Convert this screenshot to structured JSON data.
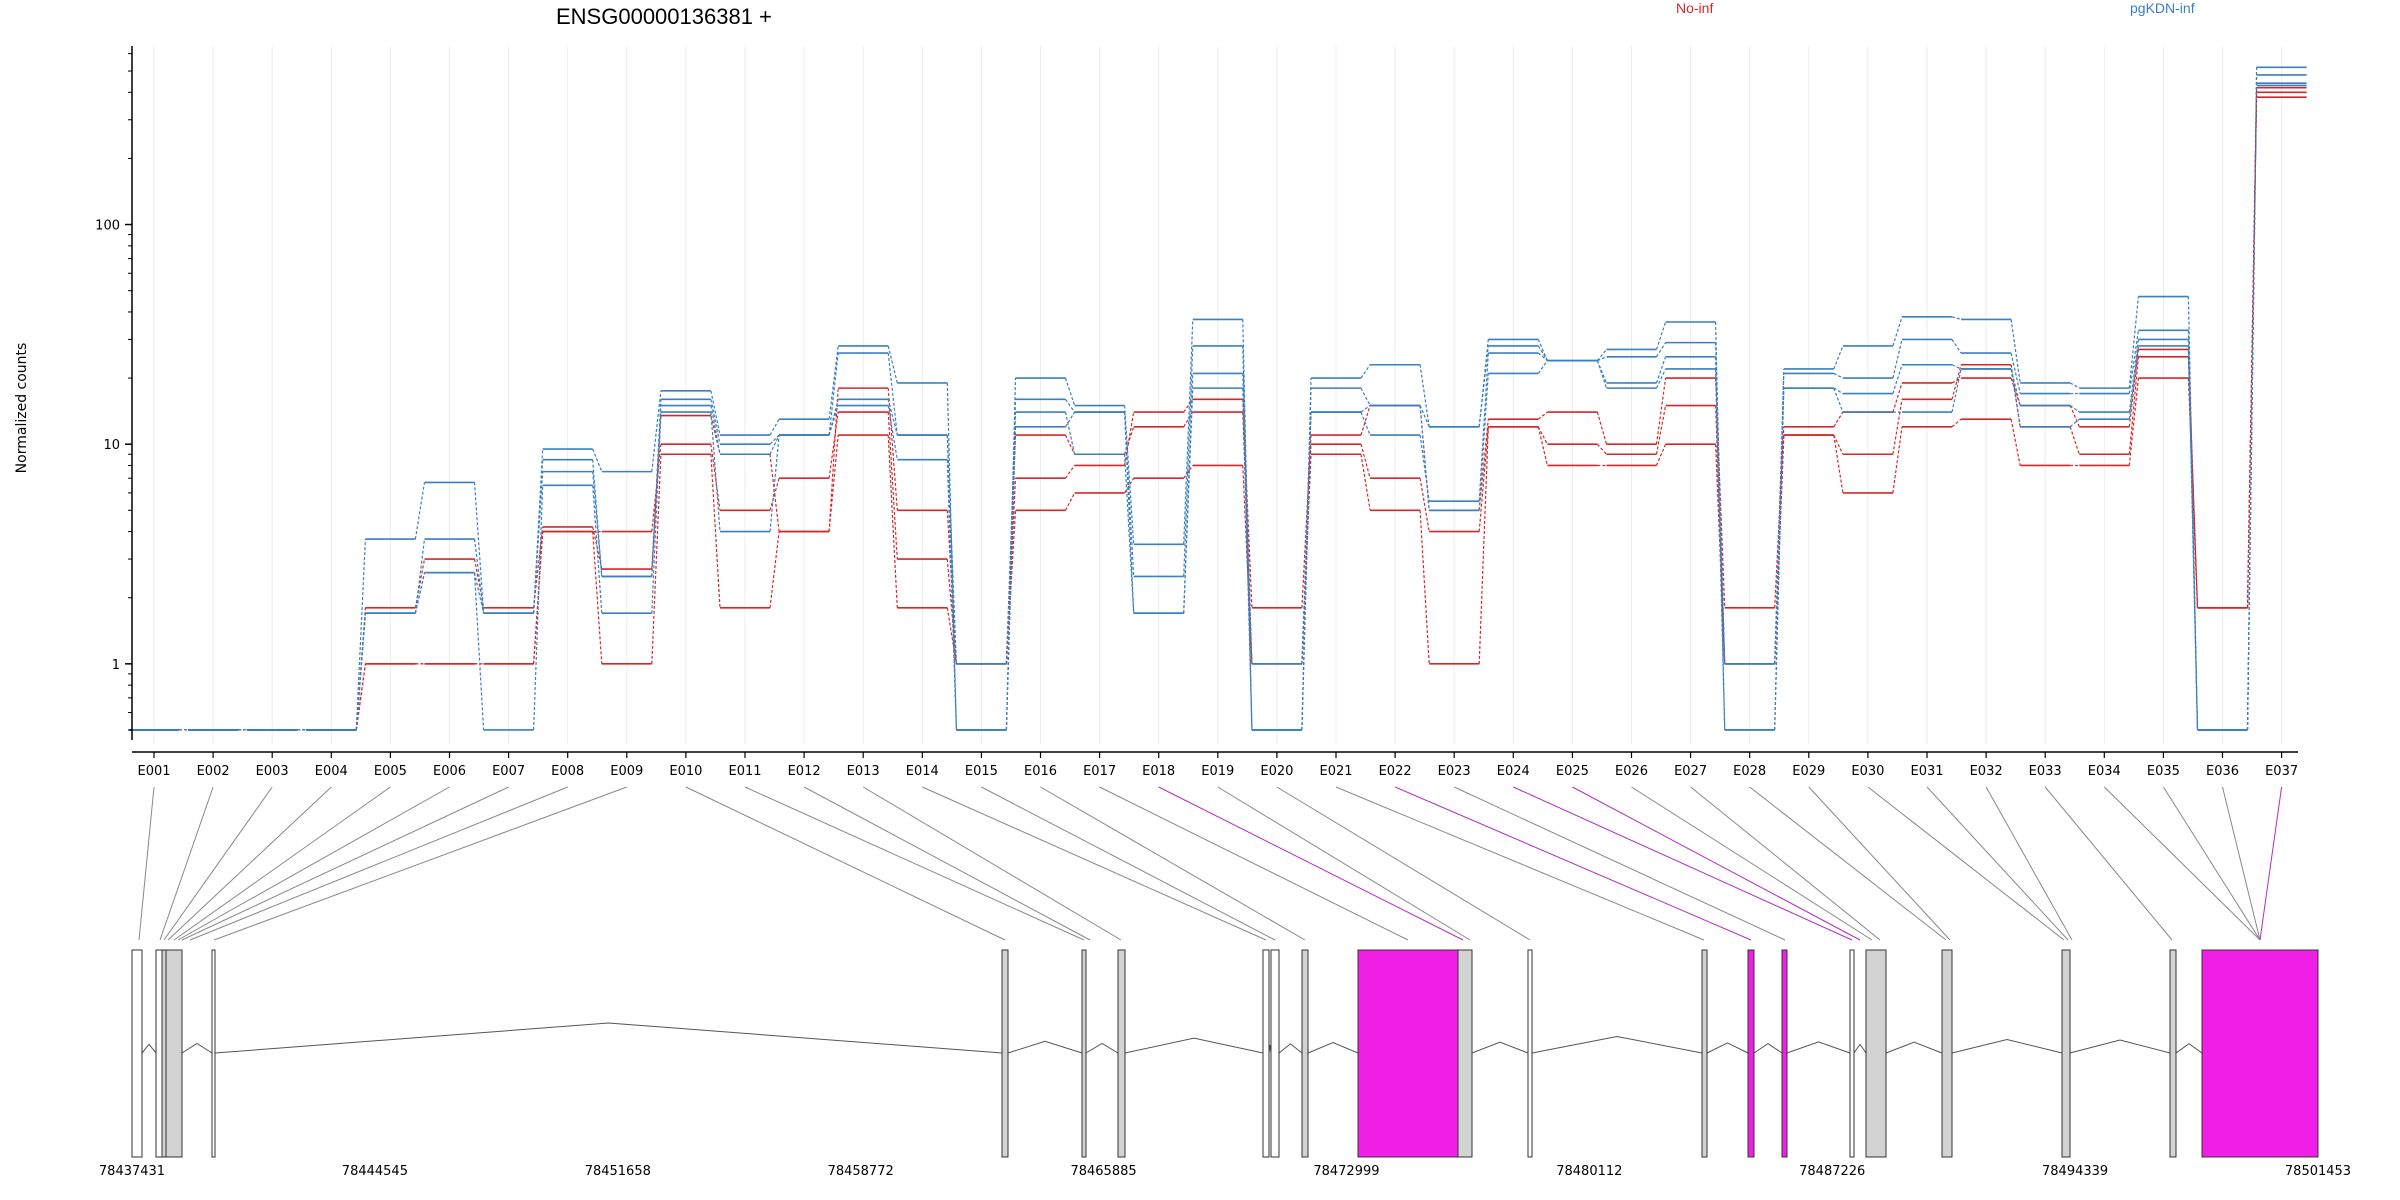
{
  "chart_data": {
    "type": "line",
    "title": "ENSG00000136381 +",
    "ylabel": "Normalized counts",
    "xlabel": "",
    "yscale": "log",
    "ylim": [
      0.45,
      650
    ],
    "yticks": [
      1,
      10,
      100
    ],
    "ytick_labels": [
      "1",
      "10",
      "100"
    ],
    "grid": "vertical",
    "legend": {
      "placement": "top",
      "entries": [
        {
          "label": "No-inf",
          "color": "#d62728"
        },
        {
          "label": "pgKDN-inf",
          "color": "#3a7fbf"
        }
      ]
    },
    "categories": [
      "E001",
      "E002",
      "E003",
      "E004",
      "E005",
      "E006",
      "E007",
      "E008",
      "E009",
      "E010",
      "E011",
      "E012",
      "E013",
      "E014",
      "E015",
      "E016",
      "E017",
      "E018",
      "E019",
      "E020",
      "E021",
      "E022",
      "E023",
      "E024",
      "E025",
      "E026",
      "E027",
      "E028",
      "E029",
      "E030",
      "E031",
      "E032",
      "E033",
      "E034",
      "E035",
      "E036",
      "E037"
    ],
    "series": [
      {
        "group": "No-inf",
        "color": "#d62728",
        "values": [
          0.5,
          0.5,
          0.5,
          0.5,
          1.8,
          3,
          1.8,
          4.2,
          2.7,
          13.5,
          9,
          4,
          18,
          5,
          1,
          7,
          8,
          14,
          16,
          1.8,
          11,
          15,
          5,
          13,
          14,
          10,
          20,
          1.8,
          12,
          14,
          19,
          20,
          15,
          12,
          27,
          1.8,
          420
        ]
      },
      {
        "group": "No-inf",
        "color": "#d62728",
        "values": [
          0.5,
          0.5,
          0.5,
          0.5,
          1,
          1,
          1,
          4,
          4,
          10,
          5,
          7,
          14,
          3,
          1,
          11,
          9,
          12,
          14,
          1,
          10,
          7,
          4,
          12,
          10,
          9,
          15,
          1,
          11,
          9,
          16,
          23,
          12,
          9,
          25,
          1.8,
          400
        ]
      },
      {
        "group": "No-inf",
        "color": "#d62728",
        "values": [
          0.5,
          0.5,
          0.5,
          0.5,
          1,
          1,
          1,
          4,
          1,
          9,
          1.8,
          4,
          11,
          1.8,
          1,
          5,
          6,
          7,
          8,
          1,
          9,
          5,
          1,
          12,
          8,
          8,
          10,
          1,
          11,
          6,
          12,
          13,
          8,
          8,
          20,
          1.8,
          380
        ]
      },
      {
        "group": "pgKDN-inf",
        "color": "#3a7fbf",
        "values": [
          0.5,
          0.5,
          0.5,
          0.5,
          3.7,
          6.7,
          1.7,
          9.5,
          7.5,
          17.5,
          11,
          13,
          28,
          19,
          0.5,
          20,
          15,
          3.5,
          37,
          0.5,
          20,
          23,
          12,
          30,
          24,
          27,
          36,
          0.5,
          22,
          28,
          38,
          37,
          19,
          18,
          47,
          0.5,
          520
        ]
      },
      {
        "group": "pgKDN-inf",
        "color": "#3a7fbf",
        "values": [
          0.5,
          0.5,
          0.5,
          0.5,
          1.7,
          3.7,
          1.7,
          8.5,
          2.5,
          16,
          10,
          11,
          26,
          11,
          0.5,
          16,
          14,
          2.5,
          28,
          0.5,
          18,
          15,
          12,
          28,
          24,
          25,
          29,
          1,
          21,
          20,
          30,
          26,
          17,
          17,
          33,
          0.5,
          480
        ]
      },
      {
        "group": "pgKDN-inf",
        "color": "#3a7fbf",
        "values": [
          0.5,
          0.5,
          0.5,
          0.5,
          1.7,
          2.6,
          1.7,
          7.5,
          2.5,
          15,
          9,
          11,
          16,
          11,
          1,
          14,
          9,
          1.7,
          21,
          1,
          14,
          11,
          5.5,
          26,
          24,
          19,
          25,
          1,
          18,
          17,
          23,
          22,
          15,
          14,
          30,
          0.5,
          440
        ]
      },
      {
        "group": "pgKDN-inf",
        "color": "#3a7fbf",
        "values": [
          0.5,
          0.5,
          0.5,
          0.5,
          1.7,
          2.6,
          0.5,
          6.5,
          1.7,
          14,
          4,
          11,
          15,
          8.5,
          0.5,
          12,
          14,
          1.7,
          18,
          0.5,
          14,
          15,
          5,
          21,
          24,
          18,
          22,
          0.5,
          18,
          14,
          14,
          22,
          12,
          13,
          28,
          0.5,
          430
        ]
      }
    ]
  },
  "gene_model": {
    "coordinate_labels": [
      "78437431",
      "78444545",
      "78451658",
      "78458772",
      "78465885",
      "78472999",
      "78480112",
      "78487226",
      "78494339",
      "78501453"
    ],
    "exon_color": "#d3d3d3",
    "highlight_color": "#f01fe6",
    "connector_color": "#888888"
  }
}
